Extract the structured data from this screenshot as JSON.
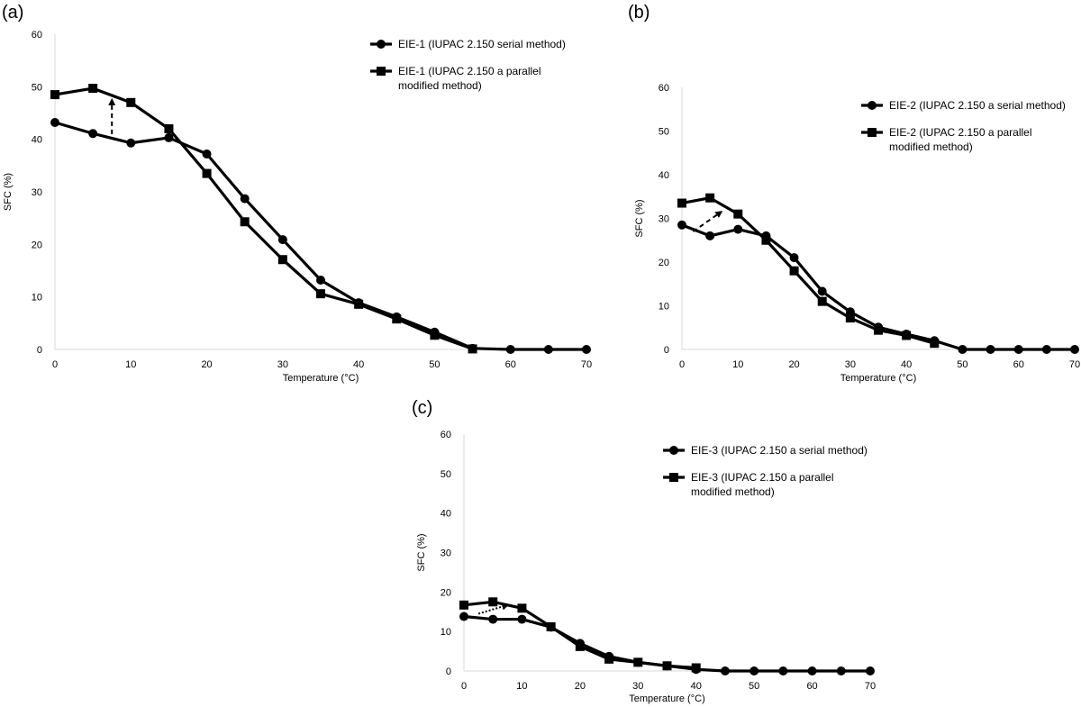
{
  "chart_data": [
    {
      "panel": "(a)",
      "type": "line",
      "title": "",
      "xlabel": "Temperature (°C)",
      "ylabel": "SFC (%)",
      "xlim": [
        0,
        70
      ],
      "ylim": [
        0,
        60
      ],
      "xticks": [
        0,
        10,
        20,
        30,
        40,
        50,
        60,
        70
      ],
      "yticks": [
        0,
        10,
        20,
        30,
        40,
        50,
        60
      ],
      "legend_position": "top-right",
      "series": [
        {
          "name": "EIE-1 (IUPAC 2.150 serial method)",
          "name_lines": [
            "EIE-1 (IUPAC 2.150 serial method)"
          ],
          "marker": "circle",
          "x": [
            0,
            5,
            10,
            15,
            20,
            25,
            30,
            35,
            40,
            45,
            50,
            55,
            60,
            65,
            70
          ],
          "values": [
            43.2,
            41.1,
            39.3,
            40.3,
            37.2,
            28.7,
            20.9,
            13.2,
            8.9,
            6.2,
            3.3,
            0.2,
            0,
            0,
            0
          ]
        },
        {
          "name": "EIE-1  (IUPAC 2.150 a parallel modified method)",
          "name_lines": [
            "EIE-1  (IUPAC 2.150 a parallel",
            "modified method)"
          ],
          "marker": "square",
          "x": [
            0,
            5,
            10,
            15,
            20,
            25,
            30,
            35,
            40,
            45,
            50,
            55
          ],
          "values": [
            48.5,
            49.7,
            47.0,
            42.0,
            33.5,
            24.3,
            17.1,
            10.6,
            8.6,
            5.8,
            2.7,
            0.1
          ]
        }
      ],
      "annotations": [
        {
          "type": "dashed-arrow",
          "from": [
            7.5,
            41
          ],
          "to": [
            7.5,
            47.5
          ]
        }
      ]
    },
    {
      "panel": "(b)",
      "type": "line",
      "title": "",
      "xlabel": "Temperature (°C)",
      "ylabel": "SFC (%)",
      "xlim": [
        0,
        70
      ],
      "ylim": [
        0,
        60
      ],
      "xticks": [
        0,
        10,
        20,
        30,
        40,
        50,
        60,
        70
      ],
      "yticks": [
        0,
        10,
        20,
        30,
        40,
        50,
        60
      ],
      "legend_position": "top-right",
      "series": [
        {
          "name": "EIE-2 (IUPAC 2.150 a serial method)",
          "name_lines": [
            "EIE-2 (IUPAC 2.150 a serial method)"
          ],
          "marker": "circle",
          "x": [
            0,
            5,
            10,
            15,
            20,
            25,
            30,
            35,
            40,
            45,
            50,
            55,
            60,
            65,
            70
          ],
          "values": [
            28.5,
            26.0,
            27.5,
            26.0,
            21.0,
            13.3,
            8.6,
            5.1,
            3.5,
            2.0,
            0,
            0,
            0,
            0,
            0
          ]
        },
        {
          "name": "EIE-2  (IUPAC 2.150 a parallel modified method)",
          "name_lines": [
            "EIE-2  (IUPAC 2.150 a parallel",
            "modified method)"
          ],
          "marker": "square",
          "x": [
            0,
            5,
            10,
            15,
            20,
            25,
            30,
            35,
            40,
            45
          ],
          "values": [
            33.5,
            34.7,
            31.0,
            25.0,
            18.0,
            11.0,
            7.2,
            4.4,
            3.2,
            1.4
          ]
        }
      ],
      "annotations": [
        {
          "type": "dashed-arrow",
          "from": [
            2,
            27
          ],
          "to": [
            7,
            31.5
          ]
        }
      ]
    },
    {
      "panel": "(c)",
      "type": "line",
      "title": "",
      "xlabel": "Temperature (°C)",
      "ylabel": "SFC (%)",
      "xlim": [
        0,
        70
      ],
      "ylim": [
        0,
        60
      ],
      "xticks": [
        0,
        10,
        20,
        30,
        40,
        50,
        60,
        70
      ],
      "yticks": [
        0,
        10,
        20,
        30,
        40,
        50,
        60
      ],
      "legend_position": "top-right",
      "series": [
        {
          "name": "EIE-3 (IUPAC 2.150 a serial method)",
          "name_lines": [
            "EIE-3 (IUPAC 2.150 a serial method)"
          ],
          "marker": "circle",
          "x": [
            0,
            5,
            10,
            15,
            20,
            25,
            30,
            35,
            40,
            45,
            50,
            55,
            60,
            65,
            70
          ],
          "values": [
            13.8,
            13.1,
            13.1,
            11.1,
            7.0,
            3.7,
            2.2,
            1.3,
            0.4,
            0,
            0,
            0,
            0,
            0,
            0
          ]
        },
        {
          "name": "EIE-3 (IUPAC 2.150 a parallel modified method)",
          "name_lines": [
            "EIE-3 (IUPAC 2.150 a parallel",
            "modified method)"
          ],
          "marker": "square",
          "x": [
            0,
            5,
            10,
            15,
            20,
            25,
            30,
            35,
            40
          ],
          "values": [
            16.7,
            17.5,
            15.9,
            11.2,
            6.2,
            3.0,
            2.2,
            1.3,
            0.8
          ]
        }
      ],
      "annotations": [
        {
          "type": "dotted-arrow",
          "from": [
            2.5,
            14.5
          ],
          "to": [
            7.5,
            16.7
          ]
        }
      ]
    }
  ]
}
